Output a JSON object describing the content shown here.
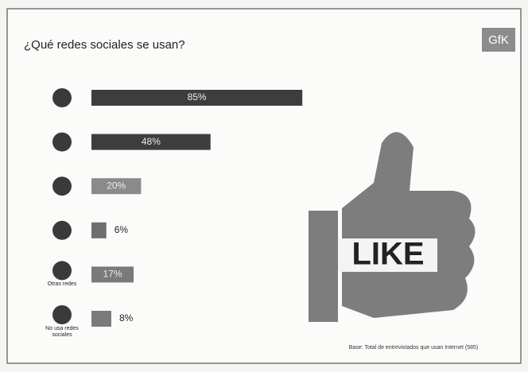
{
  "chart_data": {
    "type": "bar",
    "orientation": "horizontal",
    "title": "¿Qué redes sociales se usan?",
    "logo": "GfK",
    "categories": [
      null,
      null,
      null,
      null,
      "Otras redes",
      "No usa redes sociales"
    ],
    "values": [
      85,
      48,
      20,
      6,
      17,
      8
    ],
    "value_labels": [
      "85%",
      "48%",
      "20%",
      "6%",
      "17%",
      "8%"
    ],
    "colors": [
      "#3d3d3d",
      "#3d3d3d",
      "#8a8a8a",
      "#6e6e6e",
      "#7a7a7a",
      "#7a7a7a"
    ],
    "image_text": "LIKE",
    "note": "Base: Total de entrevistados que usan Internet (585)"
  }
}
